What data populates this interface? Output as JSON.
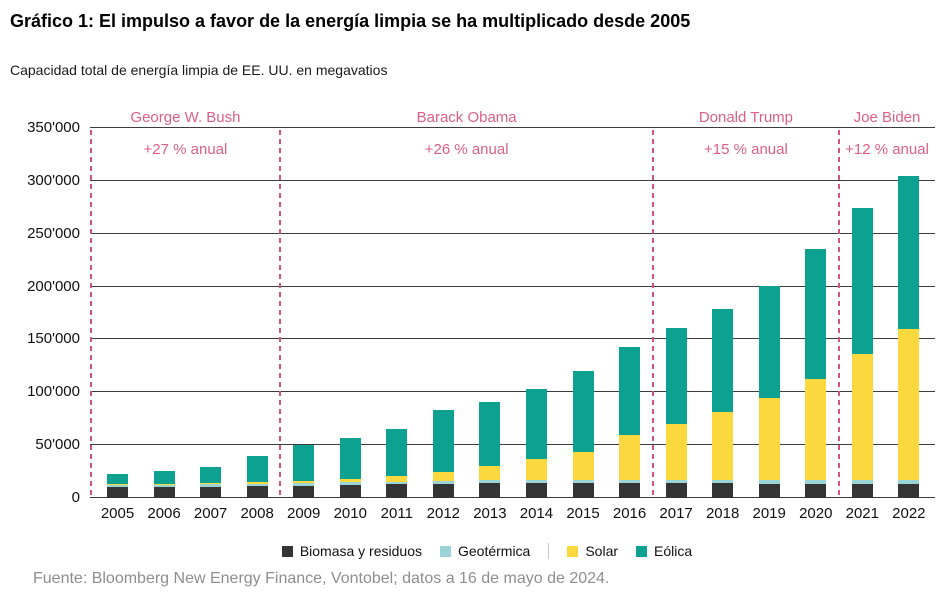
{
  "title": "Gráfico 1: El impulso a favor de la energía limpia se ha multiplicado desde 2005",
  "subtitle": "Capacidad total de energía limpia de EE. UU. en megavatios",
  "footer": "Fuente: Bloomberg New Energy Finance, Vontobel; datos a 16 de mayo de 2024.",
  "colors": {
    "biomasa": "#343434",
    "geotermica": "#9ad4d6",
    "solar": "#fcd83f",
    "eolica": "#0ca191",
    "annotation_pink": "#dd6083",
    "dashed_line_pink": "#d8537a",
    "gridline": "#3c3c3c",
    "footer_gray": "#8e8e8e"
  },
  "chart_data": {
    "type": "bar",
    "stacked": true,
    "title": "Capacidad total de energía limpia de EE. UU. en megavatios",
    "unit": "megavatios (MW)",
    "xlabel": "",
    "ylabel": "",
    "ylim": [
      0,
      350000
    ],
    "ytick_step": 50000,
    "ytick_labels": [
      "0",
      "50'000",
      "100'000",
      "150'000",
      "200'000",
      "250'000",
      "300'000",
      "350'000"
    ],
    "grid": true,
    "legend_position": "bottom",
    "categories": [
      2005,
      2006,
      2007,
      2008,
      2009,
      2010,
      2011,
      2012,
      2013,
      2014,
      2015,
      2016,
      2017,
      2018,
      2019,
      2020,
      2021,
      2022
    ],
    "series": [
      {
        "name": "Biomasa y residuos",
        "color_key": "biomasa",
        "values": [
          10400,
          10600,
          10800,
          11000,
          11600,
          12300,
          12800,
          13300,
          13800,
          14000,
          14000,
          14000,
          13900,
          13800,
          13700,
          13700,
          13600,
          13600
        ]
      },
      {
        "name": "Geotérmica",
        "color_key": "geotermica",
        "values": [
          2300,
          2300,
          2400,
          2500,
          2600,
          2700,
          2800,
          2900,
          3000,
          3100,
          3200,
          3300,
          3400,
          3500,
          3600,
          3700,
          3800,
          3900
        ]
      },
      {
        "name": "Solar",
        "color_key": "solar",
        "values": [
          500,
          600,
          800,
          1200,
          2100,
          3400,
          5600,
          8500,
          13400,
          19500,
          26500,
          42000,
          52500,
          64000,
          77500,
          95000,
          119000,
          142500
        ]
      },
      {
        "name": "Eólica",
        "color_key": "eolica",
        "values": [
          9100,
          11600,
          15800,
          24600,
          34000,
          38500,
          44500,
          58500,
          61100,
          66900,
          76300,
          83400,
          90800,
          97700,
          105600,
          123600,
          137600,
          145000
        ]
      }
    ],
    "totals": [
      22300,
      25100,
      29800,
      39300,
      50300,
      56900,
      65700,
      83200,
      91300,
      103500,
      120000,
      142700,
      160600,
      179000,
      200400,
      236000,
      274000,
      305000
    ],
    "annotations": [
      {
        "label": "George W. Bush",
        "sublabel": "+27 % anual",
        "start_year": 2005
      },
      {
        "label": "Barack Obama",
        "sublabel": "+26 % anual",
        "start_year": 2009
      },
      {
        "label": "Donald Trump",
        "sublabel": "+15 % anual",
        "start_year": 2017
      },
      {
        "label": "Joe Biden",
        "sublabel": "+12 % anual",
        "start_year": 2021
      }
    ]
  }
}
